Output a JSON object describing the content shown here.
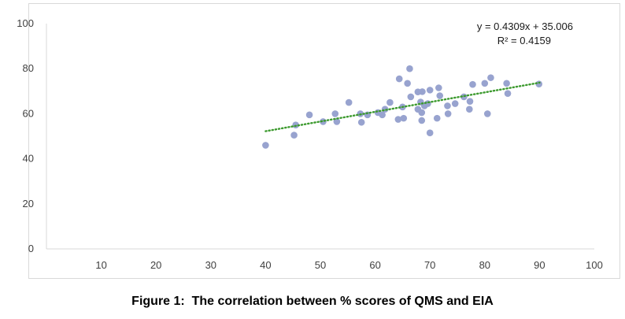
{
  "caption": "Figure 1:  The correlation between % scores of QMS and EIA",
  "chart_data": {
    "type": "scatter",
    "title": "",
    "xlabel": "",
    "ylabel": "",
    "xlim": [
      0,
      100
    ],
    "ylim": [
      0,
      100
    ],
    "x_ticks": [
      10,
      20,
      30,
      40,
      50,
      60,
      70,
      80,
      90,
      100
    ],
    "y_ticks": [
      0,
      20,
      40,
      60,
      80,
      100
    ],
    "grid": false,
    "legend": "none",
    "point_color": "#98a3cf",
    "trendline": {
      "type": "linear",
      "style": "dotted",
      "color": "#3c9a2e",
      "slope": 0.4309,
      "intercept": 35.006,
      "x_range": [
        40,
        90
      ],
      "equation_label": "y = 0.4309x + 35.006",
      "r2_label": "R² = 0.4159"
    },
    "points": [
      [
        40,
        46
      ],
      [
        45.2,
        50.5
      ],
      [
        45.5,
        55
      ],
      [
        48,
        59.5
      ],
      [
        50.5,
        56.5
      ],
      [
        52.7,
        60
      ],
      [
        53,
        56.5
      ],
      [
        55.2,
        65
      ],
      [
        57.3,
        60
      ],
      [
        57.5,
        56.2
      ],
      [
        58.6,
        59.5
      ],
      [
        60.5,
        60.5
      ],
      [
        61.3,
        59.5
      ],
      [
        61.8,
        62
      ],
      [
        62.7,
        65
      ],
      [
        64.2,
        57.5
      ],
      [
        64.4,
        75.5
      ],
      [
        65,
        63
      ],
      [
        65.2,
        58
      ],
      [
        65.9,
        73.5
      ],
      [
        66.3,
        80
      ],
      [
        66.5,
        67.5
      ],
      [
        67.8,
        69.7
      ],
      [
        67.8,
        62
      ],
      [
        68.3,
        65.2
      ],
      [
        68.5,
        60.5
      ],
      [
        68.5,
        57
      ],
      [
        68.6,
        69.8
      ],
      [
        69,
        63.5
      ],
      [
        69.6,
        64.5
      ],
      [
        70,
        51.5
      ],
      [
        70,
        70.5
      ],
      [
        71.3,
        58
      ],
      [
        71.6,
        71.5
      ],
      [
        71.8,
        68
      ],
      [
        73.2,
        63.5
      ],
      [
        73.3,
        60
      ],
      [
        74.6,
        64.5
      ],
      [
        76.2,
        67.5
      ],
      [
        77.2,
        62
      ],
      [
        77.3,
        65.5
      ],
      [
        77.8,
        73
      ],
      [
        80,
        73.5
      ],
      [
        80.5,
        60
      ],
      [
        81.1,
        76
      ],
      [
        84,
        73.5
      ],
      [
        84.2,
        69
      ],
      [
        89.9,
        73.2
      ]
    ]
  }
}
